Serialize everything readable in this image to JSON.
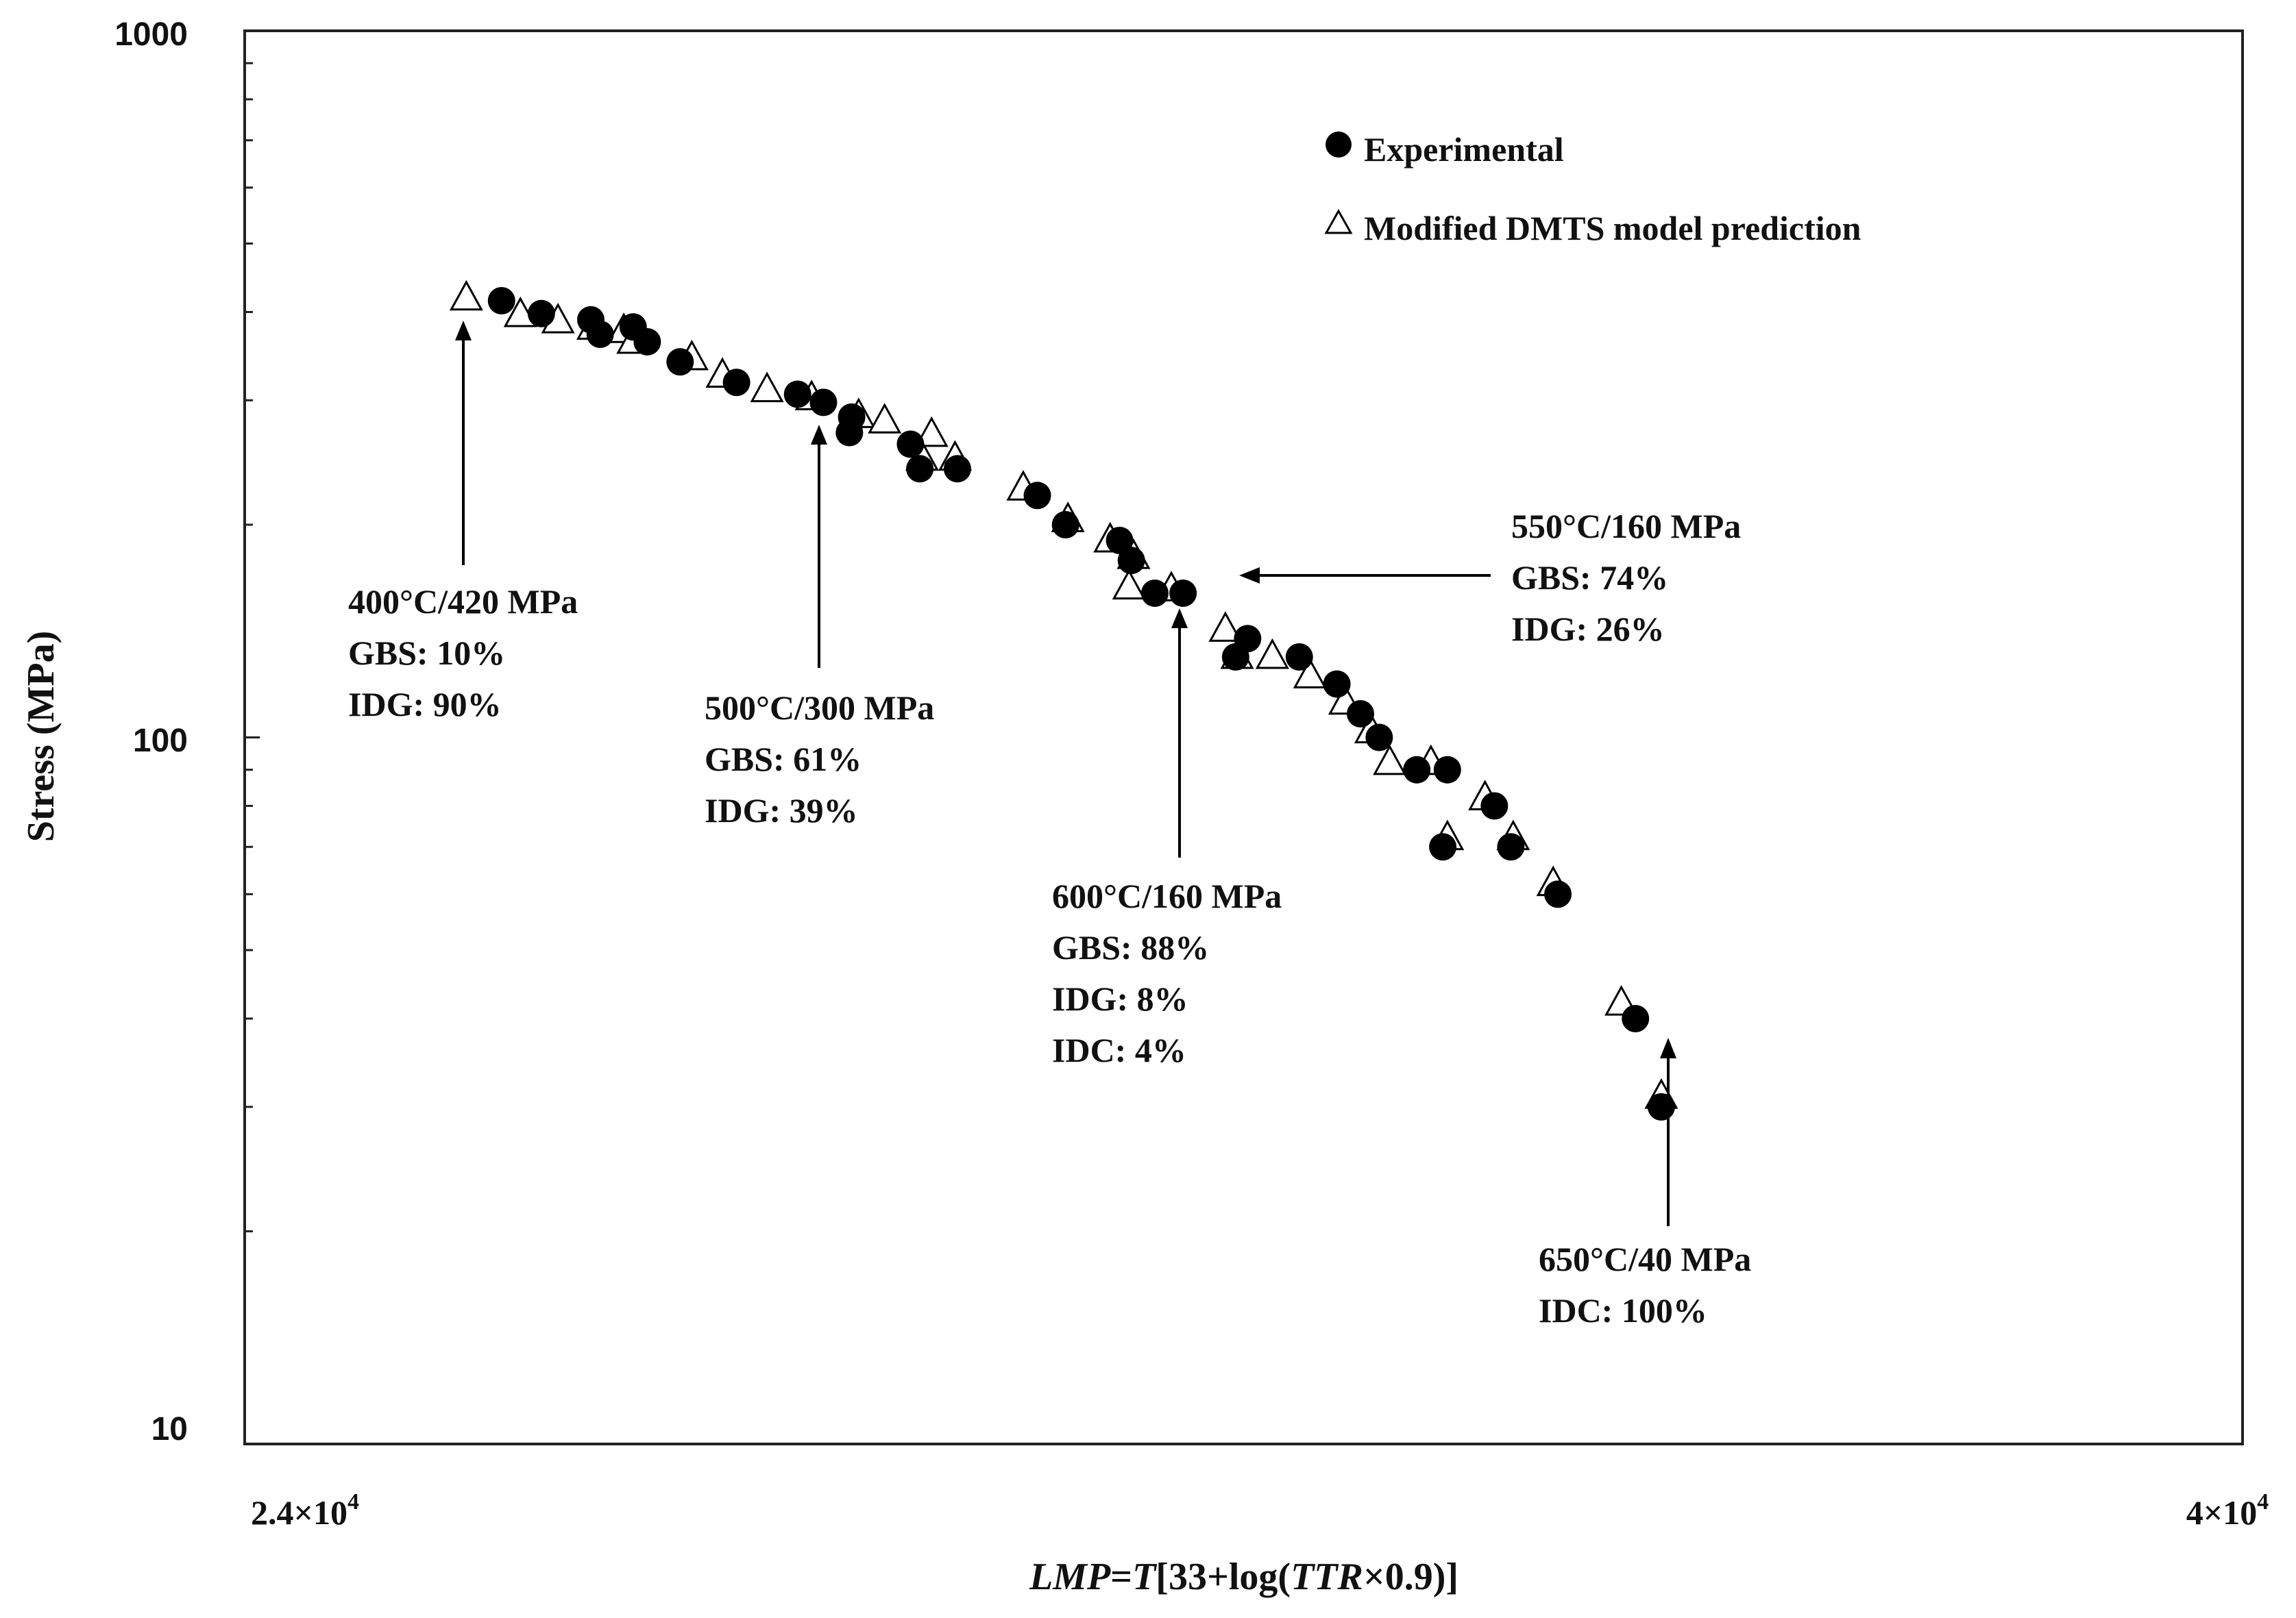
{
  "chart_data": {
    "type": "scatter",
    "title": "",
    "xlabel": {
      "italic_lmp": "LMP",
      "eq": "=",
      "italic_t": "T",
      "pre": "[33+log(",
      "italic_ttr": "TTR",
      "post": "×0.9)]"
    },
    "ylabel": "Stress (MPa)",
    "x_scale": "linear",
    "y_scale": "log",
    "xlim": [
      24000,
      40000
    ],
    "ylim": [
      10,
      1000
    ],
    "x_tick_labels": [
      {
        "value": 24000,
        "mantissa": "2.4×10",
        "exp": "4"
      },
      {
        "value": 40000,
        "mantissa": "4×10",
        "exp": "4"
      }
    ],
    "y_tick_labels": [
      {
        "value": 10,
        "label": "10"
      },
      {
        "value": 100,
        "label": "100"
      },
      {
        "value": 1000,
        "label": "1000"
      }
    ],
    "legend": {
      "position": "top-right",
      "entries": [
        {
          "marker": "filled-circle",
          "label": "Experimental"
        },
        {
          "marker": "open-triangle",
          "label": "Modified DMTS model prediction"
        }
      ]
    },
    "series": [
      {
        "name": "Experimental",
        "marker": "filled-circle",
        "color": "#000000",
        "points": [
          [
            26057,
            415
          ],
          [
            26376,
            398
          ],
          [
            26772,
            390
          ],
          [
            26847,
            372
          ],
          [
            27111,
            381
          ],
          [
            27224,
            363
          ],
          [
            27487,
            340
          ],
          [
            27939,
            318
          ],
          [
            28428,
            306
          ],
          [
            28635,
            298
          ],
          [
            28861,
            284
          ],
          [
            28843,
            270
          ],
          [
            29332,
            260
          ],
          [
            29407,
            240
          ],
          [
            29708,
            240
          ],
          [
            30348,
            220
          ],
          [
            30574,
            200
          ],
          [
            31007,
            190
          ],
          [
            31101,
            178
          ],
          [
            31289,
            160
          ],
          [
            31515,
            160
          ],
          [
            31936,
            130
          ],
          [
            32032,
            138
          ],
          [
            32446,
            130
          ],
          [
            32747,
            119
          ],
          [
            32936,
            108
          ],
          [
            33086,
            100
          ],
          [
            33387,
            90
          ],
          [
            33632,
            90
          ],
          [
            33595,
            70
          ],
          [
            34008,
            80
          ],
          [
            34140,
            70
          ],
          [
            34517,
            60
          ],
          [
            35138,
            40
          ],
          [
            35345,
            30
          ]
        ]
      },
      {
        "name": "Modified DMTS model prediction",
        "marker": "open-triangle",
        "color": "#000000",
        "points": [
          [
            25775,
            418
          ],
          [
            26208,
            396
          ],
          [
            26509,
            388
          ],
          [
            26791,
            380
          ],
          [
            27036,
            376
          ],
          [
            27111,
            363
          ],
          [
            27581,
            344
          ],
          [
            27826,
            325
          ],
          [
            28183,
            310
          ],
          [
            28540,
            302
          ],
          [
            28917,
            285
          ],
          [
            29125,
            280
          ],
          [
            29501,
            268
          ],
          [
            29426,
            248
          ],
          [
            29689,
            248
          ],
          [
            30235,
            225
          ],
          [
            30593,
            203
          ],
          [
            30931,
            190
          ],
          [
            31119,
            180
          ],
          [
            31082,
            163
          ],
          [
            31421,
            162
          ],
          [
            31854,
            142
          ],
          [
            31948,
            130
          ],
          [
            32230,
            130
          ],
          [
            32531,
            122
          ],
          [
            32812,
            112
          ],
          [
            33020,
            102
          ],
          [
            33170,
            92
          ],
          [
            33500,
            92
          ],
          [
            33632,
            72
          ],
          [
            33933,
            82
          ],
          [
            34159,
            72
          ],
          [
            34479,
            62
          ],
          [
            35025,
            42
          ],
          [
            35345,
            31
          ]
        ]
      }
    ],
    "annotations": [
      {
        "lines": [
          "400°C/420 MPa",
          "GBS: 10%",
          "IDG: 90%"
        ]
      },
      {
        "lines": [
          "500°C/300 MPa",
          "GBS: 61%",
          "IDG: 39%"
        ]
      },
      {
        "lines": [
          "600°C/160 MPa",
          "GBS: 88%",
          "IDG: 8%",
          "IDC: 4%"
        ]
      },
      {
        "lines": [
          "550°C/160 MPa",
          "GBS: 74%",
          "IDG: 26%"
        ]
      },
      {
        "lines": [
          "650°C/40 MPa",
          "IDC: 100%"
        ]
      }
    ]
  }
}
